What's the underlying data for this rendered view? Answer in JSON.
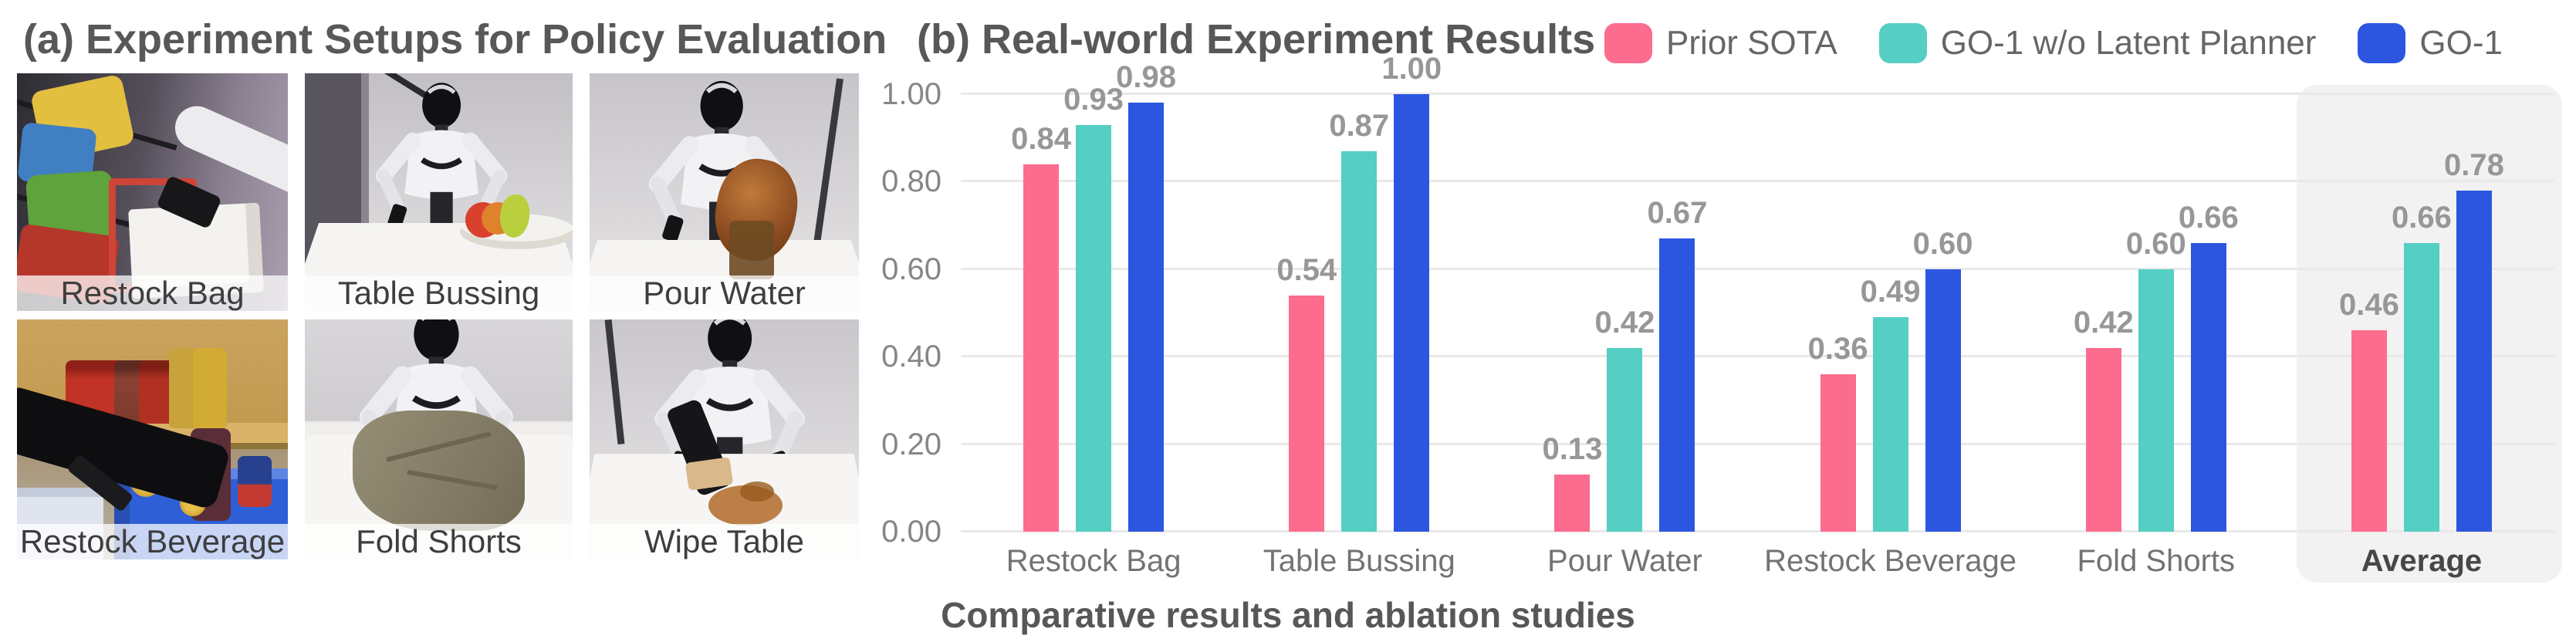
{
  "panel_a": {
    "title": "(a) Experiment Setups for Policy Evaluation",
    "setups": [
      {
        "label": "Restock Bag"
      },
      {
        "label": "Table Bussing"
      },
      {
        "label": "Pour Water"
      },
      {
        "label": "Restock Beverage"
      },
      {
        "label": "Fold Shorts"
      },
      {
        "label": "Wipe Table"
      }
    ]
  },
  "panel_b": {
    "title": "(b) Real-world Experiment Results",
    "caption": "Comparative results and ablation studies"
  },
  "chart_data": {
    "type": "bar",
    "title": "(b) Real-world Experiment Results",
    "categories": [
      "Restock Bag",
      "Table Bussing",
      "Pour Water",
      "Restock Beverage",
      "Fold Shorts",
      "Average"
    ],
    "series": [
      {
        "name": "Prior SOTA",
        "color": "#FB6C8E",
        "values": [
          0.84,
          0.54,
          0.13,
          0.36,
          0.42,
          0.46
        ]
      },
      {
        "name": "GO-1 w/o Latent Planner",
        "color": "#55CEC4",
        "values": [
          0.93,
          0.87,
          0.42,
          0.49,
          0.6,
          0.66
        ]
      },
      {
        "name": "GO-1",
        "color": "#2C56E0",
        "values": [
          0.98,
          1.0,
          0.67,
          0.6,
          0.66,
          0.78
        ]
      }
    ],
    "xlabel": "",
    "ylabel": "",
    "ylim": [
      0,
      1.0
    ],
    "yticks": [
      "0.00",
      "0.20",
      "0.40",
      "0.60",
      "0.80",
      "1.00"
    ],
    "grid": true,
    "legend_position": "top-right",
    "highlighted_category": "Average",
    "highlight_color": "#F2F2F2",
    "value_labels": "2 decimals above each bar"
  }
}
